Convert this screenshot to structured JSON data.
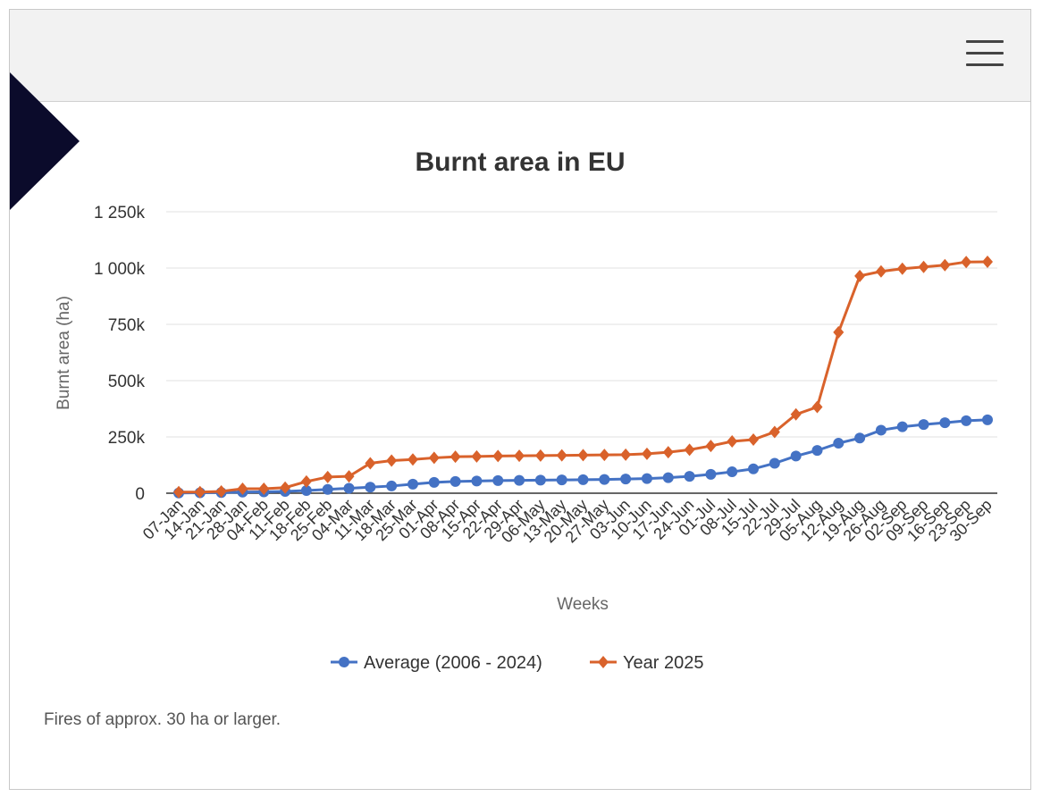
{
  "header": {
    "menu_icon": "hamburger-icon"
  },
  "footnote": "Fires of approx. 30 ha or larger.",
  "colors": {
    "average": "#4472C4",
    "year2025": "#D9622B"
  },
  "chart_data": {
    "type": "line",
    "title": "Burnt area in EU",
    "xlabel": "Weeks",
    "ylabel": "Burnt area (ha)",
    "ylim": [
      0,
      1250000
    ],
    "yticks": [
      0,
      250000,
      500000,
      750000,
      1000000,
      1250000
    ],
    "ytick_labels": [
      "0",
      "250k",
      "500k",
      "750k",
      "1 000k",
      "1 250k"
    ],
    "grid": true,
    "legend_position": "bottom",
    "categories": [
      "07-Jan",
      "14-Jan",
      "21-Jan",
      "28-Jan",
      "04-Feb",
      "11-Feb",
      "18-Feb",
      "25-Feb",
      "04-Mar",
      "11-Mar",
      "18-Mar",
      "25-Mar",
      "01-Apr",
      "08-Apr",
      "15-Apr",
      "22-Apr",
      "29-Apr",
      "06-May",
      "13-May",
      "20-May",
      "27-May",
      "03-Jun",
      "10-Jun",
      "17-Jun",
      "24-Jun",
      "01-Jul",
      "08-Jul",
      "15-Jul",
      "22-Jul",
      "29-Jul",
      "05-Aug",
      "12-Aug",
      "19-Aug",
      "26-Aug",
      "02-Sep",
      "09-Sep",
      "16-Sep",
      "23-Sep",
      "30-Sep"
    ],
    "series": [
      {
        "name": "Average (2006 - 2024)",
        "marker": "circle",
        "values": [
          1000,
          2000,
          3000,
          5000,
          6000,
          8000,
          12000,
          17000,
          22000,
          27000,
          32000,
          40000,
          48000,
          52000,
          54000,
          56000,
          57000,
          58000,
          59000,
          60000,
          61000,
          63000,
          65000,
          69000,
          75000,
          84000,
          95000,
          108000,
          133000,
          165000,
          190000,
          222000,
          245000,
          280000,
          295000,
          305000,
          313000,
          322000,
          326000
        ]
      },
      {
        "name": "Year 2025",
        "marker": "diamond",
        "values": [
          5000,
          5000,
          8000,
          20000,
          20000,
          25000,
          52000,
          72000,
          75000,
          133000,
          145000,
          150000,
          157000,
          162000,
          163000,
          165000,
          166000,
          167000,
          168000,
          169000,
          170000,
          171000,
          175000,
          182000,
          193000,
          210000,
          230000,
          238000,
          272000,
          350000,
          383000,
          715000,
          965000,
          985000,
          997000,
          1005000,
          1013000,
          1027000,
          1028000
        ]
      }
    ]
  }
}
